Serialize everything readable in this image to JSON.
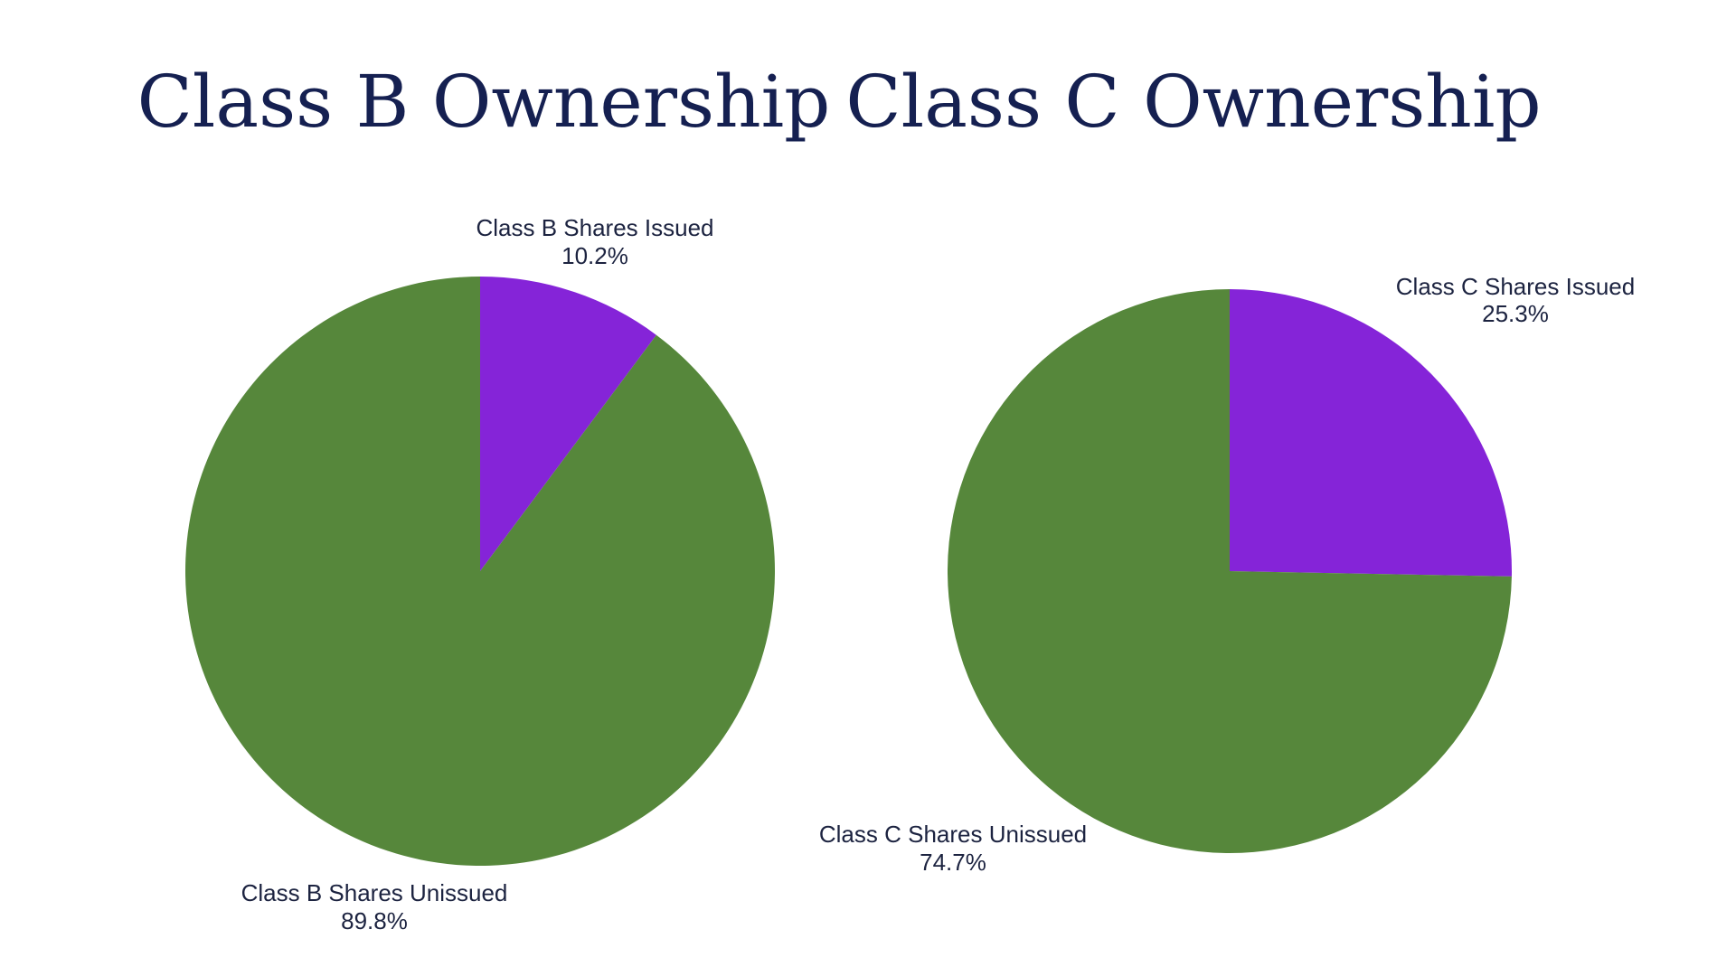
{
  "colors": {
    "background": "#ffffff",
    "title": "#152051",
    "label": "#1c2340",
    "issued": "#8524d8",
    "unissued": "#56873b"
  },
  "chart_data": [
    {
      "type": "pie",
      "title": "Class B Ownership",
      "start_angle_deg": 0,
      "direction": "clockwise",
      "slices": [
        {
          "label": "Class B Shares Issued",
          "percent_text": "10.2%",
          "value": 10.2,
          "color": "#8524d8"
        },
        {
          "label": "Class B Shares Unissued",
          "percent_text": "89.8%",
          "value": 89.8,
          "color": "#56873b"
        }
      ]
    },
    {
      "type": "pie",
      "title": "Class C Ownership",
      "start_angle_deg": 0,
      "direction": "clockwise",
      "slices": [
        {
          "label": "Class C Shares Issued",
          "percent_text": "25.3%",
          "value": 25.3,
          "color": "#8524d8"
        },
        {
          "label": "Class C Shares Unissued",
          "percent_text": "74.7%",
          "value": 74.7,
          "color": "#56873b"
        }
      ]
    }
  ]
}
